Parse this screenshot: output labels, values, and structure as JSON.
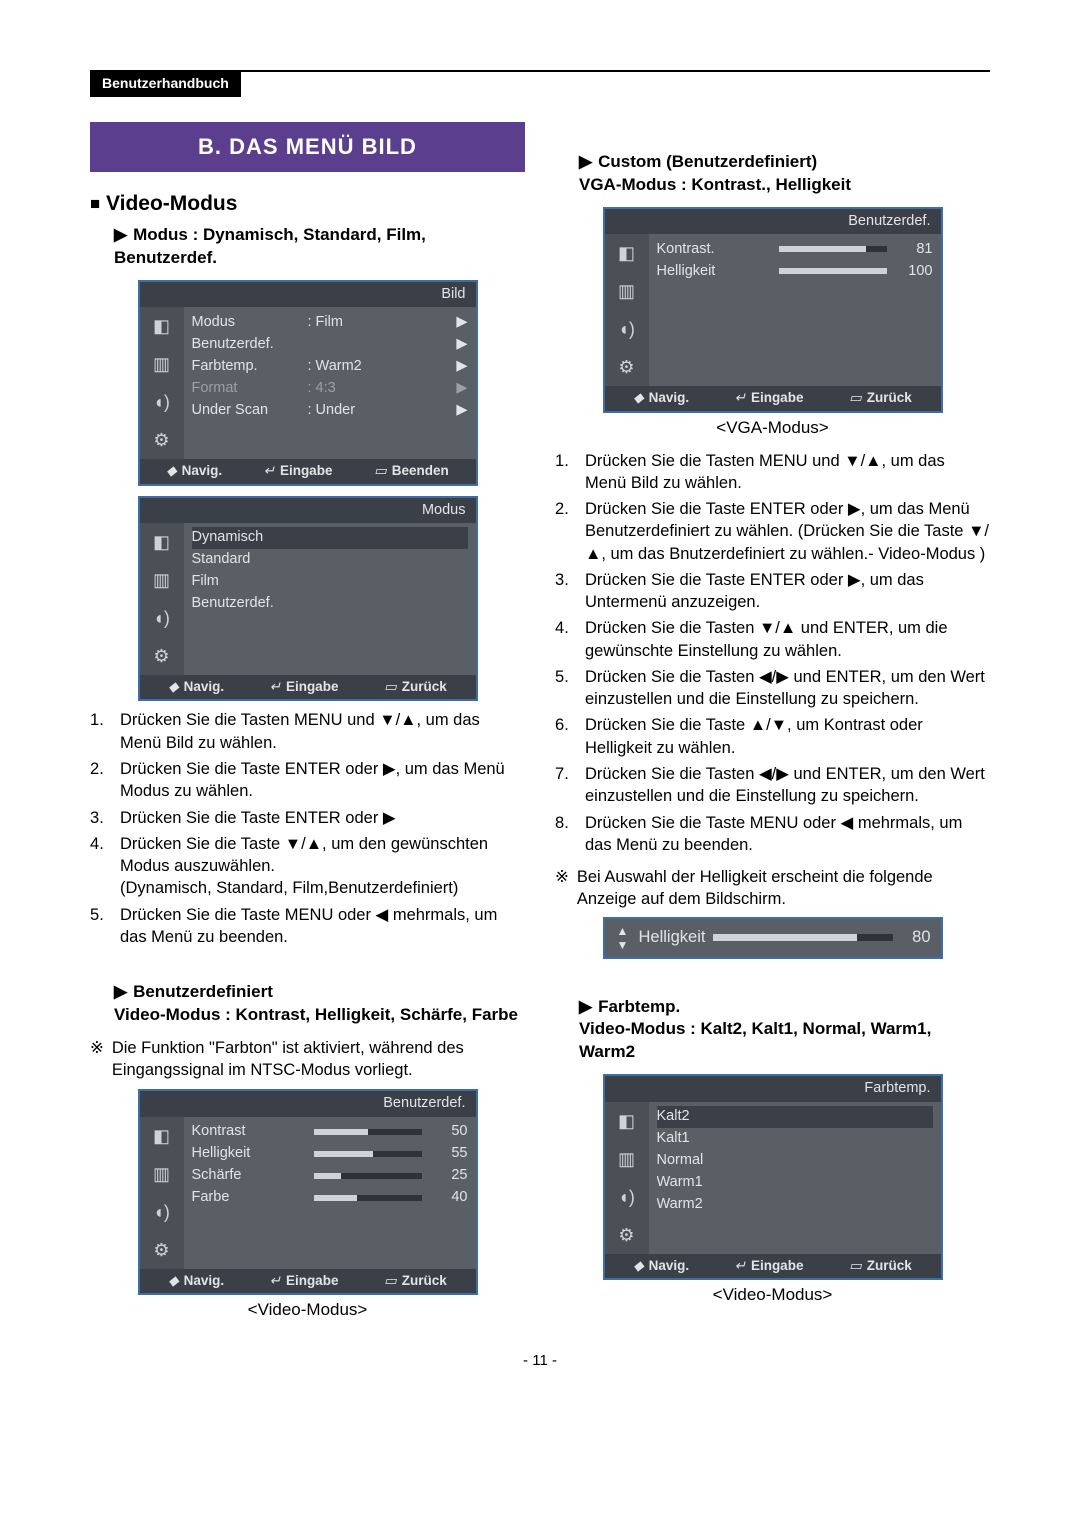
{
  "header_tab": "Benutzerhandbuch",
  "page_number": "- 11 -",
  "left": {
    "banner": "B. DAS MENÜ BILD",
    "section_title": "Video-Modus",
    "mode_heading": "Modus : Dynamisch, Standard, Film, Benutzerdef.",
    "osd_bild": {
      "title": "Bild",
      "rows": [
        {
          "label": "Modus",
          "value": ": Film",
          "arrow": true
        },
        {
          "label": "Benutzerdef.",
          "value": "",
          "arrow": true
        },
        {
          "label": "Farbtemp.",
          "value": ": Warm2",
          "arrow": true
        },
        {
          "label": "Format",
          "value": ": 4:3",
          "arrow": true,
          "disabled": true
        },
        {
          "label": "Under Scan",
          "value": ": Under",
          "arrow": true
        }
      ],
      "footer": {
        "nav": "Navig.",
        "enter": "Eingabe",
        "exit": "Beenden"
      }
    },
    "osd_modus": {
      "title": "Modus",
      "options": [
        "Dynamisch",
        "Standard",
        "Film",
        "Benutzerdef."
      ],
      "selected_index": 0,
      "footer": {
        "nav": "Navig.",
        "enter": "Eingabe",
        "exit": "Zurück"
      }
    },
    "steps": [
      "Drücken Sie die Tasten MENU und ▼/▲, um das Menü Bild zu wählen.",
      "Drücken Sie die Taste ENTER oder ▶, um das Menü Modus zu wählen.",
      "Drücken Sie die Taste ENTER oder ▶",
      "Drücken Sie die Taste ▼/▲, um den gewünschten Modus auszuwählen.\n(Dynamisch, Standard, Film,Benutzerdefiniert)",
      "Drücken Sie die Taste MENU oder ◀ mehrmals, um das Menü zu beenden."
    ],
    "userdef_heading": "Benutzerdefiniert\nVideo-Modus : Kontrast, Helligkeit, Schärfe, Farbe",
    "userdef_note": "Die Funktion \"Farbton\" ist aktiviert, während des Eingangssignal im NTSC-Modus vorliegt.",
    "osd_userdef": {
      "title": "Benutzerdef.",
      "rows": [
        {
          "label": "Kontrast",
          "value": 50
        },
        {
          "label": "Helligkeit",
          "value": 55
        },
        {
          "label": "Schärfe",
          "value": 25
        },
        {
          "label": "Farbe",
          "value": 40
        }
      ],
      "footer": {
        "nav": "Navig.",
        "enter": "Eingabe",
        "exit": "Zurück"
      }
    },
    "caption_video": "<Video-Modus>"
  },
  "right": {
    "custom_heading": "Custom (Benutzerdefiniert)\nVGA-Modus : Kontrast., Helligkeit",
    "osd_vga": {
      "title": "Benutzerdef.",
      "rows": [
        {
          "label": "Kontrast.",
          "value": 81
        },
        {
          "label": "Helligkeit",
          "value": 100
        }
      ],
      "footer": {
        "nav": "Navig.",
        "enter": "Eingabe",
        "exit": "Zurück"
      }
    },
    "caption_vga": "<VGA-Modus>",
    "steps": [
      "Drücken Sie die Tasten MENU und ▼/▲, um das Menü Bild zu wählen.",
      "Drücken Sie die Taste ENTER oder ▶, um das Menü Benutzerdefiniert zu wählen. (Drücken Sie die Taste ▼/▲, um das Bnutzerdefiniert zu wählen.- Video-Modus )",
      "Drücken Sie die Taste ENTER oder ▶, um das Untermenü anzuzeigen.",
      "Drücken Sie die Tasten ▼/▲ und ENTER, um die gewünschte Einstellung zu wählen.",
      "Drücken Sie die Tasten ◀/▶ und ENTER, um den Wert einzustellen und die Einstellung zu speichern.",
      "Drücken Sie die Taste ▲/▼, um Kontrast oder Helligkeit zu wählen.",
      "Drücken Sie die Tasten ◀/▶ und ENTER, um den Wert einzustellen und die Einstellung zu speichern.",
      "Drücken Sie die Taste MENU oder ◀ mehrmals, um das Menü zu beenden."
    ],
    "brightness_note": "Bei Auswahl der Helligkeit erscheint die folgende Anzeige auf dem Bildschirm.",
    "brightness_bar": {
      "label": "Helligkeit",
      "value": 80
    },
    "farbtemp_heading": "Farbtemp.\nVideo-Modus : Kalt2, Kalt1, Normal, Warm1, Warm2",
    "osd_farbtemp": {
      "title": "Farbtemp.",
      "options": [
        "Kalt2",
        "Kalt1",
        "Normal",
        "Warm1",
        "Warm2"
      ],
      "selected_index": 0,
      "footer": {
        "nav": "Navig.",
        "enter": "Eingabe",
        "exit": "Zurück"
      }
    },
    "caption_farbtemp": "<Video-Modus>"
  },
  "glyphs": {
    "enter": "↵",
    "menu": "▭",
    "updown": "◆",
    "right": "▶",
    "sq": "■"
  }
}
